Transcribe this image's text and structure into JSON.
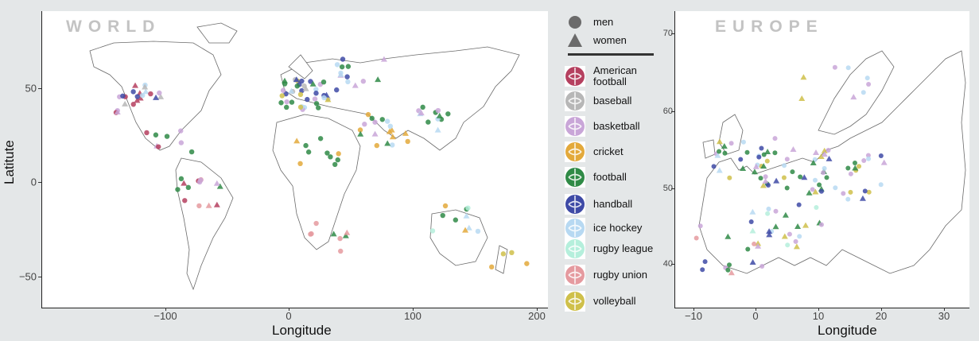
{
  "world": {
    "title": "WORLD",
    "xlabel": "Longitude",
    "ylabel": "Latitute",
    "x_ticks": [
      "−100",
      "0",
      "100",
      "200"
    ],
    "y_ticks": [
      "50",
      "0",
      "−50"
    ]
  },
  "europe": {
    "title": "EUROPE",
    "xlabel": "Longitude",
    "x_ticks": [
      "−10",
      "0",
      "10",
      "20",
      "30"
    ],
    "y_ticks": [
      "70",
      "60",
      "50",
      "40"
    ]
  },
  "legend": {
    "shapes": [
      {
        "label": "men",
        "icon": "circle-icon"
      },
      {
        "label": "women",
        "icon": "triangle-icon"
      }
    ],
    "sports": [
      {
        "label": "American football",
        "color": "#b5405f",
        "icon": "american-football-icon"
      },
      {
        "label": "baseball",
        "color": "#b7b7b7",
        "icon": "baseball-icon"
      },
      {
        "label": "basketball",
        "color": "#c9a6d8",
        "icon": "basketball-icon"
      },
      {
        "label": "cricket",
        "color": "#e3a93b",
        "icon": "cricket-icon"
      },
      {
        "label": "football",
        "color": "#2f8a46",
        "icon": "football-icon"
      },
      {
        "label": "handball",
        "color": "#3e4aa6",
        "icon": "handball-icon"
      },
      {
        "label": "ice hockey",
        "color": "#b7d9f2",
        "icon": "ice-hockey-icon"
      },
      {
        "label": "rugby league",
        "color": "#b5efdc",
        "icon": "rugby-league-icon"
      },
      {
        "label": "rugby union",
        "color": "#e59a9f",
        "icon": "rugby-union-icon"
      },
      {
        "label": "volleyball",
        "color": "#cfc04a",
        "icon": "volleyball-icon"
      }
    ]
  }
}
